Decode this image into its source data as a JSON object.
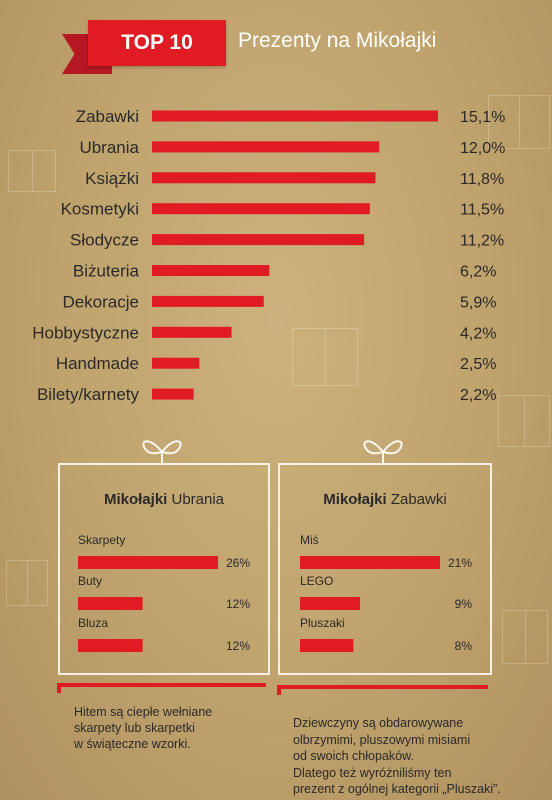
{
  "header": {
    "badge": "TOP 10",
    "title": "Prezenty na Mikołajki"
  },
  "colors": {
    "bar": "#e01b24",
    "background": "#bfa26c"
  },
  "chart_data": [
    {
      "type": "bar",
      "orientation": "horizontal",
      "categories": [
        "Zabawki",
        "Ubrania",
        "Książki",
        "Kosmetyki",
        "Słodycze",
        "Biżuteria",
        "Dekoracje",
        "Hobbystyczne",
        "Handmade",
        "Bilety/karnety"
      ],
      "values": [
        15.1,
        12.0,
        11.8,
        11.5,
        11.2,
        6.2,
        5.9,
        4.2,
        2.5,
        2.2
      ],
      "value_labels": [
        "15,1%",
        "12,0%",
        "11,8%",
        "11,5%",
        "11,2%",
        "6,2%",
        "5,9%",
        "4,2%",
        "2,5%",
        "2,2%"
      ],
      "title": "Prezenty na Mikołajki",
      "xlabel": "",
      "ylabel": "",
      "xlim": [
        0,
        15.1
      ],
      "grid": false
    },
    {
      "type": "bar",
      "orientation": "horizontal",
      "title_bold": "Mikołajki",
      "title_rest": "Ubrania",
      "categories": [
        "Skarpety",
        "Buty",
        "Bluza"
      ],
      "values": [
        26,
        12,
        12
      ],
      "value_labels": [
        "26%",
        "12%",
        "12%"
      ],
      "xlim": [
        0,
        26
      ]
    },
    {
      "type": "bar",
      "orientation": "horizontal",
      "title_bold": "Mikołajki",
      "title_rest": "Zabawki",
      "categories": [
        "Miś",
        "LEGO",
        "Pluszaki"
      ],
      "values": [
        21,
        9,
        8
      ],
      "value_labels": [
        "21%",
        "9%",
        "8%"
      ],
      "xlim": [
        0,
        21
      ]
    }
  ],
  "notes": {
    "left": [
      "Hitem są ciepłe wełniane",
      "skarpety lub skarpetki",
      "w świąteczne wzorki."
    ],
    "right": [
      "Dziewczyny są obdarowywane",
      "olbrzymimi, pluszowymi misiami",
      "od swoich chłopaków.",
      "Dlatego też wyróżniliśmy ten",
      "prezent z ogólnej kategorii „Pluszaki”."
    ]
  }
}
